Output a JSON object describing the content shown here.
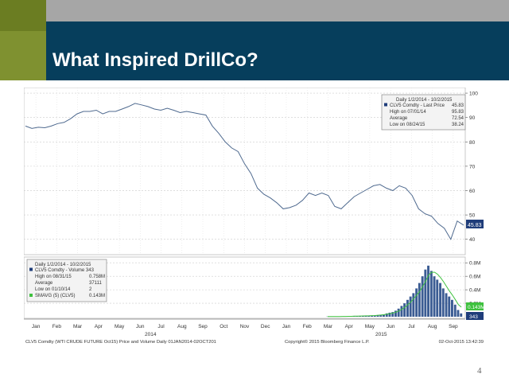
{
  "slide": {
    "title": "What Inspired DrillCo?",
    "page_number": "4"
  },
  "chart_data": [
    {
      "type": "line",
      "legend": {
        "header": "Daily 1/2/2014 - 10/2/2015",
        "rows": [
          {
            "label": "CLV5 Comdty - Last Price",
            "value": "45.83"
          },
          {
            "label": "High on 07/01/14",
            "value": "95.83"
          },
          {
            "label": "Average",
            "value": "72.54"
          },
          {
            "label": "Low on 08/24/15",
            "value": "38.24"
          }
        ],
        "placement": "top-right"
      },
      "y_ticks": [
        "100",
        "90",
        "80",
        "70",
        "60",
        "50",
        "40"
      ],
      "ylim": [
        35,
        101
      ],
      "last_value_label": "45.83",
      "series": [
        {
          "x": [
            0,
            8,
            16,
            24,
            32,
            40,
            48,
            56,
            64,
            72,
            80,
            88,
            96,
            104,
            112,
            120,
            128,
            136,
            144,
            152,
            160,
            168,
            176,
            184,
            192,
            200,
            208,
            216,
            224,
            232,
            240,
            248,
            256,
            264,
            272,
            280,
            288,
            296,
            304,
            312,
            320,
            328,
            336,
            344,
            352,
            360,
            368,
            376,
            384,
            392,
            400,
            408,
            416,
            424,
            432,
            440,
            448,
            456,
            464,
            472,
            480,
            488,
            496,
            504,
            512,
            520,
            528,
            536,
            544
          ],
          "values": [
            86.5,
            85.5,
            86,
            85.8,
            86.5,
            87.5,
            88,
            89.5,
            91.5,
            92.5,
            92.5,
            93,
            91.5,
            92.5,
            92.5,
            93.5,
            94.5,
            95.8,
            95.2,
            94.5,
            93.5,
            93,
            93.8,
            93,
            92,
            92.5,
            92,
            91.5,
            91,
            86.5,
            83.5,
            80,
            77.5,
            76,
            71,
            67,
            61,
            58.5,
            57,
            55,
            52.5,
            53,
            54,
            56,
            59,
            58,
            59,
            58,
            53.5,
            52.5,
            55,
            57.5,
            59,
            60.5,
            62,
            62.5,
            61,
            60,
            62,
            61,
            58,
            52.5,
            50.5,
            49.5,
            46.5,
            44.5,
            40,
            47.5,
            45.8
          ]
        }
      ],
      "x_tick_labels": [
        "Jan",
        "Feb",
        "Mar",
        "Apr",
        "May",
        "Jun",
        "Jul",
        "Aug",
        "Sep",
        "Oct",
        "Nov",
        "Dec",
        "Jan",
        "Feb",
        "Mar",
        "Apr",
        "May",
        "Jun",
        "Jul",
        "Aug",
        "Sep"
      ],
      "year_labels": [
        "2014",
        "2015"
      ]
    },
    {
      "type": "bar",
      "legend": {
        "header": "Daily 1/2/2014 - 10/2/2015",
        "rows": [
          {
            "label": "CLV5 Comdty - Volume 343",
            "value": ""
          },
          {
            "label": "High on 08/31/15",
            "value": "0.758M"
          },
          {
            "label": "Average",
            "value": "37111"
          },
          {
            "label": "Low on 01/10/14",
            "value": "2"
          },
          {
            "label": "SMAVG (5) (CLV5)",
            "value": "0.143M"
          }
        ],
        "placement": "top-left"
      },
      "y_ticks": [
        "0.8M",
        "0.6M",
        "0.4M",
        "0.2M"
      ],
      "ylim": [
        0,
        0.85
      ],
      "last_value_labels": [
        "0.143M",
        "343"
      ],
      "values": [
        0.002,
        0.003,
        0.002,
        0.004,
        0.003,
        0.005,
        0.004,
        0.006,
        0.005,
        0.008,
        0.01,
        0.012,
        0.01,
        0.015,
        0.012,
        0.018,
        0.02,
        0.025,
        0.03,
        0.035,
        0.05,
        0.06,
        0.07,
        0.09,
        0.12,
        0.16,
        0.2,
        0.25,
        0.3,
        0.35,
        0.42,
        0.5,
        0.6,
        0.7,
        0.758,
        0.68,
        0.6,
        0.55,
        0.5,
        0.42,
        0.35,
        0.3,
        0.25,
        0.18,
        0.1,
        0.05
      ],
      "smavg": [
        0.002,
        0.003,
        0.003,
        0.004,
        0.004,
        0.005,
        0.005,
        0.006,
        0.006,
        0.008,
        0.009,
        0.011,
        0.012,
        0.013,
        0.014,
        0.016,
        0.018,
        0.022,
        0.026,
        0.031,
        0.038,
        0.046,
        0.055,
        0.068,
        0.086,
        0.11,
        0.14,
        0.18,
        0.22,
        0.27,
        0.32,
        0.38,
        0.45,
        0.53,
        0.62,
        0.66,
        0.66,
        0.63,
        0.58,
        0.52,
        0.45,
        0.38,
        0.32,
        0.25,
        0.18,
        0.143
      ]
    }
  ],
  "footer": {
    "left": "CLV5 Comdty (WTI CRUDE FUTURE  Oct15) Price and Volume  Daily 01JAN2014-02OCT201",
    "center": "Copyright© 2015 Bloomberg Finance L.P.",
    "right": "02-Oct-2015 13:42:39"
  }
}
